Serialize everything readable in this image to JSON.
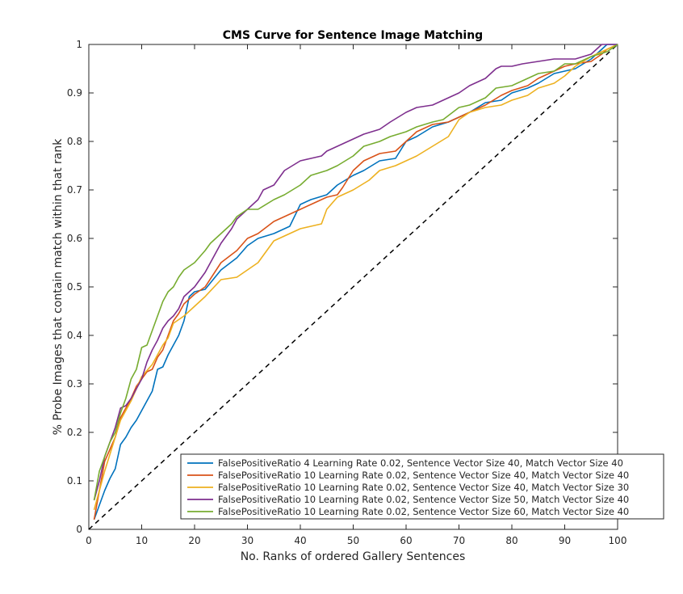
{
  "chart_data": {
    "type": "line",
    "title": "CMS Curve for Sentence Image Matching",
    "xlabel": "No. Ranks of ordered Gallery Sentences",
    "ylabel": "% Probe Images that contain match within that rank",
    "xlim": [
      0,
      100
    ],
    "ylim": [
      0,
      1
    ],
    "xticks": [
      "0",
      "10",
      "20",
      "30",
      "40",
      "50",
      "60",
      "70",
      "80",
      "90",
      "100"
    ],
    "yticks": [
      "0",
      "0.1",
      "0.2",
      "0.3",
      "0.4",
      "0.5",
      "0.6",
      "0.7",
      "0.8",
      "0.9",
      "1"
    ],
    "grid": false,
    "legend_position": "bottom-right",
    "series": [
      {
        "name": "FalsePositiveRatio 4 Learning Rate 0.02, Sentence Vector Size 40, Match Vector Size 40",
        "color": "#0072BD",
        "x": [
          1,
          2,
          3,
          4,
          5,
          6,
          7,
          8,
          9,
          10,
          12,
          13,
          14,
          15,
          16,
          17,
          18,
          19,
          20,
          22,
          25,
          28,
          30,
          32,
          35,
          38,
          40,
          42,
          45,
          47,
          50,
          52,
          55,
          58,
          60,
          62,
          65,
          68,
          70,
          72,
          75,
          78,
          80,
          83,
          85,
          88,
          90,
          92,
          95,
          97,
          98,
          100
        ],
        "y": [
          0.02,
          0.05,
          0.08,
          0.105,
          0.125,
          0.175,
          0.19,
          0.21,
          0.225,
          0.245,
          0.285,
          0.33,
          0.335,
          0.36,
          0.38,
          0.4,
          0.43,
          0.48,
          0.49,
          0.495,
          0.535,
          0.56,
          0.585,
          0.6,
          0.61,
          0.625,
          0.67,
          0.68,
          0.69,
          0.71,
          0.73,
          0.74,
          0.76,
          0.765,
          0.8,
          0.81,
          0.83,
          0.84,
          0.85,
          0.86,
          0.88,
          0.885,
          0.9,
          0.91,
          0.92,
          0.94,
          0.945,
          0.95,
          0.97,
          0.99,
          1.0,
          1.0
        ]
      },
      {
        "name": "FalsePositiveRatio 10 Learning Rate 0.02, Sentence Vector Size 40, Match Vector Size 40",
        "color": "#D95319",
        "x": [
          1,
          2,
          3,
          4,
          5,
          6,
          7,
          8,
          9,
          10,
          11,
          12,
          13,
          14,
          15,
          16,
          17,
          18,
          20,
          22,
          25,
          28,
          30,
          32,
          35,
          38,
          40,
          42,
          45,
          47,
          48,
          50,
          52,
          55,
          58,
          60,
          62,
          65,
          68,
          70,
          72,
          75,
          78,
          80,
          83,
          85,
          88,
          90,
          92,
          95,
          97,
          98,
          100
        ],
        "y": [
          0.02,
          0.08,
          0.14,
          0.165,
          0.19,
          0.23,
          0.25,
          0.27,
          0.295,
          0.31,
          0.325,
          0.33,
          0.355,
          0.37,
          0.4,
          0.43,
          0.445,
          0.465,
          0.485,
          0.5,
          0.55,
          0.575,
          0.6,
          0.61,
          0.635,
          0.65,
          0.66,
          0.67,
          0.685,
          0.69,
          0.705,
          0.74,
          0.76,
          0.775,
          0.78,
          0.8,
          0.82,
          0.835,
          0.84,
          0.85,
          0.86,
          0.875,
          0.895,
          0.905,
          0.915,
          0.93,
          0.945,
          0.955,
          0.96,
          0.965,
          0.98,
          0.99,
          1.0
        ]
      },
      {
        "name": "FalsePositiveRatio 10 Learning Rate 0.02, Sentence Vector Size 40, Match Vector Size 30",
        "color": "#EDB120",
        "x": [
          1,
          2,
          3,
          4,
          5,
          6,
          7,
          8,
          9,
          10,
          12,
          14,
          15,
          16,
          18,
          20,
          22,
          25,
          28,
          30,
          32,
          34,
          35,
          36,
          38,
          40,
          42,
          44,
          45,
          47,
          50,
          53,
          55,
          58,
          60,
          62,
          65,
          68,
          70,
          72,
          75,
          78,
          80,
          83,
          85,
          88,
          90,
          92,
          95,
          97,
          98,
          100
        ],
        "y": [
          0.04,
          0.08,
          0.12,
          0.155,
          0.19,
          0.225,
          0.245,
          0.265,
          0.29,
          0.315,
          0.34,
          0.38,
          0.395,
          0.425,
          0.44,
          0.46,
          0.48,
          0.515,
          0.52,
          0.535,
          0.55,
          0.58,
          0.595,
          0.6,
          0.61,
          0.62,
          0.625,
          0.63,
          0.66,
          0.685,
          0.7,
          0.72,
          0.74,
          0.75,
          0.76,
          0.77,
          0.79,
          0.81,
          0.845,
          0.86,
          0.87,
          0.875,
          0.885,
          0.895,
          0.91,
          0.92,
          0.935,
          0.955,
          0.975,
          0.985,
          0.99,
          1.0
        ]
      },
      {
        "name": "FalsePositiveRatio 10 Learning Rate 0.02, Sentence Vector Size 50, Match Vector Size 40",
        "color": "#7E2F8E",
        "x": [
          1,
          2,
          3,
          4,
          5,
          6,
          7,
          8,
          9,
          10,
          11,
          12,
          13,
          14,
          15,
          16,
          17,
          18,
          20,
          22,
          23,
          25,
          27,
          28,
          30,
          32,
          33,
          35,
          37,
          40,
          42,
          44,
          45,
          47,
          50,
          52,
          55,
          57,
          60,
          62,
          65,
          67,
          70,
          72,
          75,
          77,
          78,
          80,
          82,
          85,
          88,
          90,
          92,
          95,
          97,
          100
        ],
        "y": [
          0.06,
          0.1,
          0.15,
          0.18,
          0.21,
          0.25,
          0.255,
          0.27,
          0.29,
          0.31,
          0.345,
          0.37,
          0.39,
          0.415,
          0.43,
          0.44,
          0.455,
          0.48,
          0.5,
          0.53,
          0.55,
          0.59,
          0.62,
          0.64,
          0.66,
          0.68,
          0.7,
          0.71,
          0.74,
          0.76,
          0.765,
          0.77,
          0.78,
          0.79,
          0.805,
          0.815,
          0.825,
          0.84,
          0.86,
          0.87,
          0.875,
          0.885,
          0.9,
          0.915,
          0.93,
          0.95,
          0.955,
          0.955,
          0.96,
          0.965,
          0.97,
          0.97,
          0.97,
          0.98,
          1.0,
          1.0
        ]
      },
      {
        "name": "FalsePositiveRatio 10 Learning Rate 0.02, Sentence Vector Size 60, Match Vector Size 40",
        "color": "#77AC30",
        "x": [
          1,
          2,
          3,
          4,
          5,
          6,
          7,
          8,
          9,
          10,
          11,
          12,
          13,
          14,
          15,
          16,
          17,
          18,
          20,
          22,
          23,
          25,
          27,
          28,
          30,
          32,
          35,
          37,
          40,
          42,
          45,
          47,
          50,
          52,
          55,
          57,
          60,
          62,
          65,
          67,
          70,
          72,
          75,
          77,
          80,
          82,
          85,
          88,
          90,
          92,
          95,
          98,
          100
        ],
        "y": [
          0.06,
          0.12,
          0.15,
          0.18,
          0.2,
          0.24,
          0.27,
          0.31,
          0.33,
          0.375,
          0.38,
          0.41,
          0.44,
          0.47,
          0.49,
          0.5,
          0.52,
          0.535,
          0.55,
          0.575,
          0.59,
          0.61,
          0.63,
          0.645,
          0.66,
          0.66,
          0.68,
          0.69,
          0.71,
          0.73,
          0.74,
          0.75,
          0.77,
          0.79,
          0.8,
          0.81,
          0.82,
          0.83,
          0.84,
          0.845,
          0.87,
          0.875,
          0.89,
          0.91,
          0.915,
          0.925,
          0.94,
          0.945,
          0.96,
          0.96,
          0.975,
          0.985,
          1.0
        ]
      }
    ],
    "reference_line": {
      "x": [
        0,
        100
      ],
      "y": [
        0,
        1
      ],
      "color": "#000000",
      "style": "dashed"
    }
  }
}
